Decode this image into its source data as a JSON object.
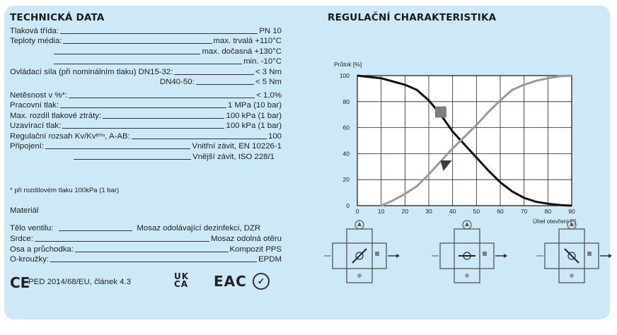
{
  "left": {
    "title": "TECHNICKÁ DATA",
    "rows": [
      {
        "label": "Tlaková třída:",
        "value": "PN 10"
      },
      {
        "label": "Teploty média:",
        "value": "max. trvalá +110°C"
      },
      {
        "label": "",
        "value": "max. dočasná +130°C"
      },
      {
        "label": "",
        "value": "min. -10°C"
      },
      {
        "label": "Ovládací síla (při nominálním tlaku) DN15-32:",
        "value": "< 3 Nm"
      },
      {
        "label": "DN40-50:",
        "value": "< 5 Nm"
      },
      {
        "label": "Netěsnost v %*:",
        "value": "< 1,0%"
      },
      {
        "label": "Pracovní tlak:",
        "value": "1 MPa (10 bar)"
      },
      {
        "label": "Max. rozdíl tlakové ztráty:",
        "value": "100 kPa (1 bar)"
      },
      {
        "label": "Uzavírací tlak:",
        "value": "100 kPa (1 bar)"
      },
      {
        "label": "Regulační rozsah Kv/Kvᵐⁱⁿ, A-AB:",
        "value": "100"
      },
      {
        "label": "Připojení:",
        "value": "Vnitřní závit, EN 10226-1"
      },
      {
        "label": "",
        "value": "Vnější závit, ISO 228/1"
      }
    ],
    "footnote": "* při rozdílovém tlaku 100kPa (1 bar)",
    "material_title": "Materiál",
    "materials": [
      {
        "label": "Tělo ventilu:",
        "value": "Mosaz odolávající dezinfekci, DZR"
      },
      {
        "label": "Srdce:",
        "value": "Mosaz odolná otěru"
      },
      {
        "label": "Osa a průchodka:",
        "value": "Kompozit PPS"
      },
      {
        "label": "O-kroužky:",
        "value": "EPDM"
      }
    ],
    "ce_mark": "CE",
    "ped": "PED 2014/68/EU, článek 4.3",
    "ukca_top": "UK",
    "ukca_bottom": "CA",
    "eac": "EAC"
  },
  "right": {
    "title": "REGULAČNÍ CHARAKTERISTIKA"
  },
  "chart_data": {
    "type": "line",
    "ylabel": "Průtok [%]",
    "xlabel": "Úhel otevření [°]",
    "xlim": [
      0,
      90
    ],
    "ylim": [
      0,
      100
    ],
    "xticks": [
      0,
      10,
      20,
      30,
      40,
      50,
      60,
      70,
      80,
      90
    ],
    "yticks": [
      0,
      20,
      40,
      60,
      80,
      100
    ],
    "grid": true,
    "series": [
      {
        "color": "#111111",
        "x": [
          0,
          10,
          20,
          25,
          30,
          35,
          40,
          45,
          50,
          55,
          60,
          65,
          70,
          75,
          80,
          85,
          90
        ],
        "y": [
          100,
          98,
          93,
          89,
          81,
          70,
          57,
          47,
          37,
          27,
          18,
          11,
          6,
          3,
          1.5,
          0.5,
          0
        ]
      },
      {
        "color": "#9a9a9a",
        "x": [
          10,
          15,
          20,
          25,
          30,
          35,
          40,
          45,
          50,
          55,
          60,
          65,
          70,
          75,
          80,
          85,
          90
        ],
        "y": [
          0,
          4,
          9,
          15,
          24,
          34,
          44,
          53,
          62,
          72,
          81,
          89,
          93,
          96,
          98,
          99.5,
          100
        ]
      }
    ],
    "markers": [
      {
        "shape": "square",
        "x": 35,
        "y": 72,
        "color": "#7c7c7c"
      },
      {
        "shape": "triangle",
        "x": 37,
        "y": 31,
        "color": "#3a3a3a"
      }
    ]
  }
}
